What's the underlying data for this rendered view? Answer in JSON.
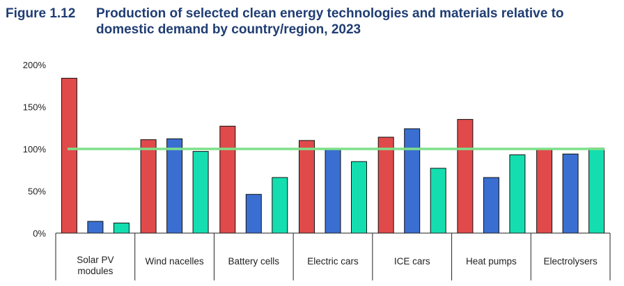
{
  "figure": {
    "number": "Figure 1.12",
    "title_line1": "Production of selected clean energy technologies and materials relative to",
    "title_line2": "domestic demand by country/region, 2023"
  },
  "chart_data": {
    "type": "bar",
    "categories": [
      [
        "Solar PV",
        "modules"
      ],
      [
        "Wind nacelles"
      ],
      [
        "Battery cells"
      ],
      [
        "Electric cars"
      ],
      [
        "ICE cars"
      ],
      [
        "Heat pumps"
      ],
      [
        "Electrolysers"
      ]
    ],
    "series": [
      {
        "color": "#e04a4a",
        "values": [
          184,
          111,
          127,
          110,
          114,
          135,
          100
        ]
      },
      {
        "color": "#3a6fd1",
        "values": [
          14,
          112,
          46,
          100,
          124,
          66,
          94
        ]
      },
      {
        "color": "#14deb0",
        "values": [
          12,
          97,
          66,
          85,
          77,
          93,
          101
        ]
      }
    ],
    "reference_line": {
      "value": 100,
      "color": "#7ee08a"
    },
    "ylim": [
      0,
      200
    ],
    "yticks": [
      "0%",
      "50%",
      "100%",
      "150%",
      "200%"
    ],
    "grid": false,
    "legend": "none"
  }
}
